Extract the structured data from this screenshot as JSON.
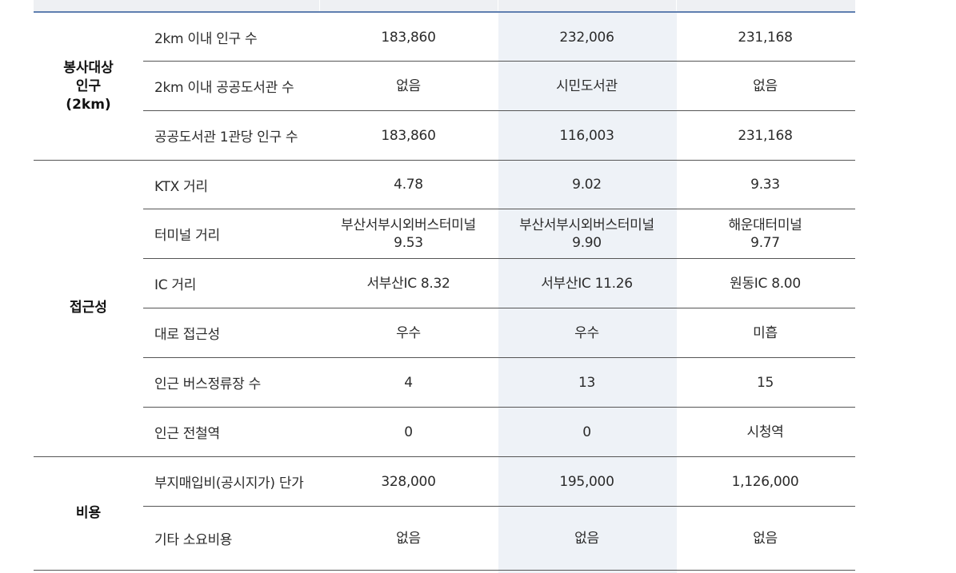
{
  "categories": {
    "population": [
      "봉사대상",
      "인구",
      "(2km)"
    ],
    "access": "접근성",
    "cost": "비용"
  },
  "rows": [
    {
      "item": "2km 이내 인구 수",
      "a": "183,860",
      "b": "232,006",
      "c": "231,168"
    },
    {
      "item": "2km 이내 공공도서관 수",
      "a": "없음",
      "b": "시민도서관",
      "c": "없음"
    },
    {
      "item": "공공도서관 1관당 인구 수",
      "a": "183,860",
      "b": "116,003",
      "c": "231,168"
    },
    {
      "item": "KTX 거리",
      "a": "4.78",
      "b": "9.02",
      "c": "9.33"
    },
    {
      "item": "터미널 거리",
      "a": "부산서부시외버스터미널",
      "a2": "9.53",
      "b": "부산서부시외버스터미널",
      "b2": "9.90",
      "c": "해운대터미널",
      "c2": "9.77"
    },
    {
      "item": "IC 거리",
      "a": "서부산IC 8.32",
      "b": "서부산IC 11.26",
      "c": "원동IC 8.00"
    },
    {
      "item": "대로 접근성",
      "a": "우수",
      "b": "우수",
      "c": "미흡"
    },
    {
      "item": "인근 버스정류장 수",
      "a": "4",
      "b": "13",
      "c": "15"
    },
    {
      "item": "인근 전철역",
      "a": "0",
      "b": "0",
      "c": "시청역"
    },
    {
      "item": "부지매입비(공시지가) 단가",
      "a": "328,000",
      "b": "195,000",
      "c": "1,126,000"
    },
    {
      "item": "기타 소요비용",
      "a": "없음",
      "b": "없음",
      "c": "없음"
    }
  ],
  "colors": {
    "header_bg": "#eef0f3",
    "header_line": "#5f7fb0",
    "highlight_column": "#eef2f7",
    "row_line": "#555555"
  }
}
